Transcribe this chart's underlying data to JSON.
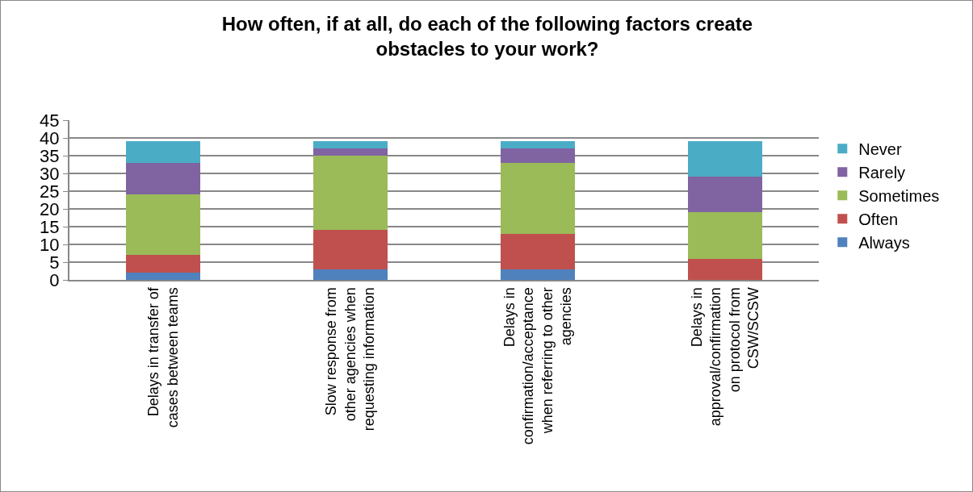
{
  "chart_data": {
    "type": "bar",
    "stacked": true,
    "title": "How often, if at all, do each of the following factors create obstacles to your work?",
    "categories": [
      "Delays in transfer of cases between teams",
      "Slow response from other agencies when requesting information",
      "Delays in confirmation/acceptance when referring to other agencies",
      "Delays in approval/confirmation on protocol from CSW/SCSW"
    ],
    "series": [
      {
        "name": "Always",
        "color": "#4f81bd",
        "values": [
          2,
          3,
          3,
          0
        ]
      },
      {
        "name": "Often",
        "color": "#c0504d",
        "values": [
          5,
          11,
          10,
          6
        ]
      },
      {
        "name": "Sometimes",
        "color": "#9bbb59",
        "values": [
          17,
          21,
          20,
          13
        ]
      },
      {
        "name": "Rarely",
        "color": "#8064a2",
        "values": [
          9,
          2,
          4,
          10
        ]
      },
      {
        "name": "Never",
        "color": "#4bacc6",
        "values": [
          6,
          2,
          2,
          10
        ]
      }
    ],
    "ylim": [
      0,
      45
    ],
    "yticks": [
      0,
      5,
      10,
      15,
      20,
      25,
      30,
      35,
      40,
      45
    ],
    "grid": "y",
    "legend": "right"
  }
}
